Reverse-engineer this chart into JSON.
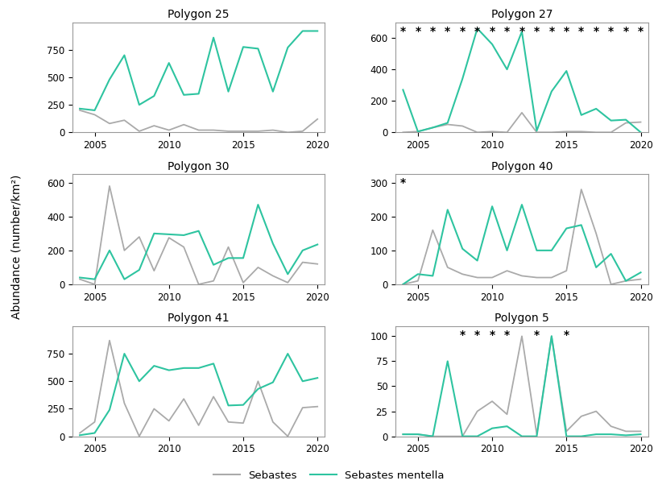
{
  "years": [
    2004,
    2005,
    2006,
    2007,
    2008,
    2009,
    2010,
    2011,
    2012,
    2013,
    2014,
    2015,
    2016,
    2017,
    2018,
    2019,
    2020
  ],
  "panels": [
    {
      "title": "Polygon 25",
      "sebastes": [
        200,
        160,
        80,
        110,
        10,
        60,
        20,
        70,
        20,
        20,
        10,
        10,
        10,
        20,
        0,
        10,
        120
      ],
      "sebastes_mentella": [
        215,
        200,
        480,
        700,
        250,
        330,
        630,
        340,
        350,
        860,
        370,
        775,
        760,
        370,
        770,
        920,
        920
      ],
      "ylim": [
        0,
        1000
      ],
      "yticks": [
        0,
        250,
        500,
        750
      ],
      "stars": []
    },
    {
      "title": "Polygon 27",
      "sebastes": [
        0,
        5,
        30,
        50,
        40,
        0,
        5,
        0,
        125,
        0,
        0,
        5,
        5,
        0,
        0,
        60,
        65
      ],
      "sebastes_mentella": [
        270,
        5,
        30,
        60,
        340,
        660,
        560,
        400,
        640,
        10,
        260,
        390,
        110,
        150,
        75,
        80,
        0
      ],
      "ylim": [
        0,
        700
      ],
      "yticks": [
        0,
        200,
        400,
        600
      ],
      "stars": [
        2004,
        2005,
        2006,
        2007,
        2008,
        2009,
        2010,
        2011,
        2012,
        2013,
        2014,
        2015,
        2016,
        2017,
        2018,
        2019,
        2020
      ]
    },
    {
      "title": "Polygon 30",
      "sebastes": [
        30,
        0,
        580,
        200,
        280,
        80,
        275,
        220,
        0,
        20,
        220,
        10,
        100,
        50,
        10,
        130,
        120
      ],
      "sebastes_mentella": [
        40,
        30,
        200,
        30,
        85,
        300,
        295,
        290,
        315,
        115,
        155,
        155,
        470,
        240,
        60,
        200,
        235
      ],
      "ylim": [
        0,
        650
      ],
      "yticks": [
        0,
        200,
        400,
        600
      ],
      "stars": []
    },
    {
      "title": "Polygon 40",
      "sebastes": [
        0,
        10,
        160,
        50,
        30,
        20,
        20,
        40,
        25,
        20,
        20,
        40,
        280,
        150,
        0,
        10,
        15
      ],
      "sebastes_mentella": [
        0,
        30,
        25,
        220,
        105,
        70,
        230,
        100,
        235,
        100,
        100,
        165,
        175,
        50,
        90,
        10,
        35
      ],
      "ylim": [
        0,
        325
      ],
      "yticks": [
        0,
        100,
        200,
        300
      ],
      "stars": [
        2004
      ]
    },
    {
      "title": "Polygon 41",
      "sebastes": [
        30,
        130,
        870,
        300,
        0,
        250,
        140,
        340,
        100,
        360,
        130,
        120,
        500,
        130,
        0,
        260,
        270
      ],
      "sebastes_mentella": [
        10,
        30,
        240,
        750,
        500,
        640,
        600,
        620,
        620,
        660,
        280,
        285,
        430,
        490,
        750,
        500,
        530
      ],
      "ylim": [
        0,
        1000
      ],
      "yticks": [
        0,
        250,
        500,
        750
      ],
      "stars": []
    },
    {
      "title": "Polygon 5",
      "sebastes": [
        2,
        2,
        0,
        0,
        0,
        25,
        35,
        22,
        100,
        2,
        100,
        5,
        20,
        25,
        10,
        5,
        5
      ],
      "sebastes_mentella": [
        2,
        2,
        0,
        75,
        0,
        0,
        8,
        10,
        0,
        0,
        100,
        0,
        0,
        2,
        2,
        1,
        2
      ],
      "ylim": [
        0,
        110
      ],
      "yticks": [
        0,
        25,
        50,
        75,
        100
      ],
      "stars": [
        2008,
        2009,
        2010,
        2011,
        2013,
        2015
      ]
    }
  ],
  "sebastes_color": "#aaaaaa",
  "sebastes_mentella_color": "#2ec4a0",
  "background_color": "#ffffff",
  "ylabel": "Abundance (number/km²)",
  "legend_sebastes": "Sebastes",
  "legend_sebastes_mentella": "Sebastes mentella",
  "xlim": [
    2003.5,
    2020.5
  ],
  "xticks": [
    2005,
    2010,
    2015,
    2020
  ]
}
